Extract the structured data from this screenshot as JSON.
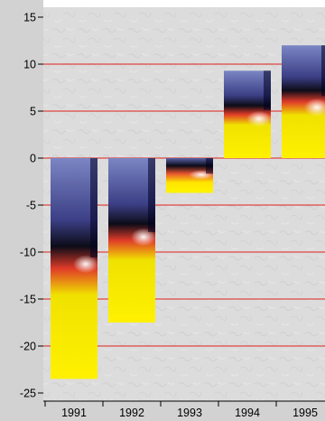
{
  "chart_data": {
    "type": "bar",
    "categories": [
      "1991",
      "1992",
      "1993",
      "1994",
      "1995"
    ],
    "values": [
      -23.5,
      -17.5,
      -3.7,
      9.3,
      12.0
    ],
    "ylim": [
      -25,
      15
    ],
    "yticks": [
      15,
      10,
      5,
      0,
      -5,
      -10,
      -15,
      -20,
      -25
    ],
    "ytick_labels": [
      "15",
      "10",
      "5",
      "0",
      "-5",
      "-10",
      "-15",
      "-20",
      "-25"
    ],
    "grid": true,
    "colors": {
      "background": "#dedede",
      "axis_strip": "#cfcfcf",
      "gridline": "#e0201a",
      "bar_fill_top": "#6f7fb8",
      "bar_fill_mid": "#e74a2a",
      "bar_fill_bottom": "#ffee00"
    }
  }
}
